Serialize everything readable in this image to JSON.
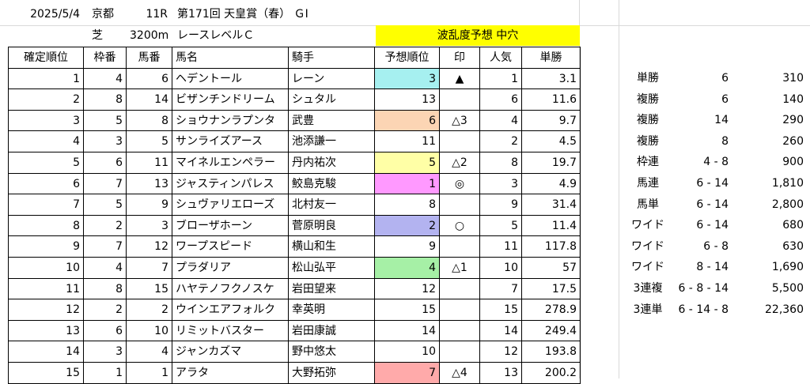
{
  "header": {
    "date": "2025/5/4",
    "venue": "京都",
    "race_no": "11R",
    "race_name": "第171回 天皇賞（春） ＧⅠ",
    "surface": "芝",
    "distance": "3200m",
    "race_level": "レースレベルＣ",
    "turbulence": "波乱度予想 中穴"
  },
  "columns": [
    "確定順位",
    "枠番",
    "馬番",
    "馬名",
    "騎手",
    "予想順位",
    "印",
    "人気",
    "単勝"
  ],
  "rows": [
    {
      "rank": "1",
      "waku": "4",
      "uma": "6",
      "name": "ヘデントール",
      "jockey": "レーン",
      "pred": "3",
      "mark": "▲",
      "pop": "1",
      "odds": "3.1",
      "hl": "hl-cyan"
    },
    {
      "rank": "2",
      "waku": "8",
      "uma": "14",
      "name": "ビザンチンドリーム",
      "jockey": "シュタル",
      "pred": "13",
      "mark": "",
      "pop": "6",
      "odds": "11.6",
      "hl": ""
    },
    {
      "rank": "3",
      "waku": "5",
      "uma": "8",
      "name": "ショウナンラプンタ",
      "jockey": "武豊",
      "pred": "6",
      "mark": "△3",
      "pop": "4",
      "odds": "9.7",
      "hl": "hl-orange"
    },
    {
      "rank": "4",
      "waku": "3",
      "uma": "5",
      "name": "サンライズアース",
      "jockey": "池添謙一",
      "pred": "11",
      "mark": "",
      "pop": "2",
      "odds": "4.5",
      "hl": ""
    },
    {
      "rank": "5",
      "waku": "6",
      "uma": "11",
      "name": "マイネルエンペラー",
      "jockey": "丹内祐次",
      "pred": "5",
      "mark": "△2",
      "pop": "8",
      "odds": "19.7",
      "hl": "hl-yellow"
    },
    {
      "rank": "6",
      "waku": "7",
      "uma": "13",
      "name": "ジャスティンパレス",
      "jockey": "鮫島克駿",
      "pred": "1",
      "mark": "◎",
      "pop": "3",
      "odds": "4.9",
      "hl": "hl-pink"
    },
    {
      "rank": "7",
      "waku": "5",
      "uma": "9",
      "name": "シュヴァリエローズ",
      "jockey": "北村友一",
      "pred": "8",
      "mark": "",
      "pop": "9",
      "odds": "31.4",
      "hl": ""
    },
    {
      "rank": "8",
      "waku": "2",
      "uma": "3",
      "name": "ブローザホーン",
      "jockey": "菅原明良",
      "pred": "2",
      "mark": "○",
      "pop": "5",
      "odds": "11.4",
      "hl": "hl-blue"
    },
    {
      "rank": "9",
      "waku": "7",
      "uma": "12",
      "name": "ワープスピード",
      "jockey": "横山和生",
      "pred": "9",
      "mark": "",
      "pop": "11",
      "odds": "117.8",
      "hl": ""
    },
    {
      "rank": "10",
      "waku": "4",
      "uma": "7",
      "name": "プラダリア",
      "jockey": "松山弘平",
      "pred": "4",
      "mark": "△1",
      "pop": "10",
      "odds": "57",
      "hl": "hl-green"
    },
    {
      "rank": "11",
      "waku": "8",
      "uma": "15",
      "name": "ハヤテノフクノスケ",
      "jockey": "岩田望来",
      "pred": "12",
      "mark": "",
      "pop": "7",
      "odds": "17.5",
      "hl": ""
    },
    {
      "rank": "12",
      "waku": "2",
      "uma": "2",
      "name": "ウインエアフォルク",
      "jockey": "幸英明",
      "pred": "15",
      "mark": "",
      "pop": "15",
      "odds": "278.9",
      "hl": ""
    },
    {
      "rank": "13",
      "waku": "6",
      "uma": "10",
      "name": "リミットバスター",
      "jockey": "岩田康誠",
      "pred": "14",
      "mark": "",
      "pop": "14",
      "odds": "249.4",
      "hl": ""
    },
    {
      "rank": "14",
      "waku": "3",
      "uma": "4",
      "name": "ジャンカズマ",
      "jockey": "野中悠太",
      "pred": "10",
      "mark": "",
      "pop": "12",
      "odds": "193.8",
      "hl": ""
    },
    {
      "rank": "15",
      "waku": "1",
      "uma": "1",
      "name": "アラタ",
      "jockey": "大野拓弥",
      "pred": "7",
      "mark": "△4",
      "pop": "13",
      "odds": "200.2",
      "hl": "hl-red"
    }
  ],
  "payouts": [
    {
      "type": "単勝",
      "combo": "6",
      "amount": "310"
    },
    {
      "type": "複勝",
      "combo": "6",
      "amount": "140"
    },
    {
      "type": "複勝",
      "combo": "14",
      "amount": "290"
    },
    {
      "type": "複勝",
      "combo": "8",
      "amount": "260"
    },
    {
      "type": "枠連",
      "combo": "4 - 8",
      "amount": "900"
    },
    {
      "type": "馬連",
      "combo": "6 - 14",
      "amount": "1,810"
    },
    {
      "type": "馬単",
      "combo": "6 - 14",
      "amount": "2,800"
    },
    {
      "type": "ワイド",
      "combo": "6 - 14",
      "amount": "680"
    },
    {
      "type": "ワイド",
      "combo": "6 - 8",
      "amount": "630"
    },
    {
      "type": "ワイド",
      "combo": "8 - 14",
      "amount": "1,690"
    },
    {
      "type": "3連複",
      "combo": "6 - 8 - 14",
      "amount": "5,500"
    },
    {
      "type": "3連単",
      "combo": "6 - 14 - 8",
      "amount": "22,360"
    }
  ]
}
